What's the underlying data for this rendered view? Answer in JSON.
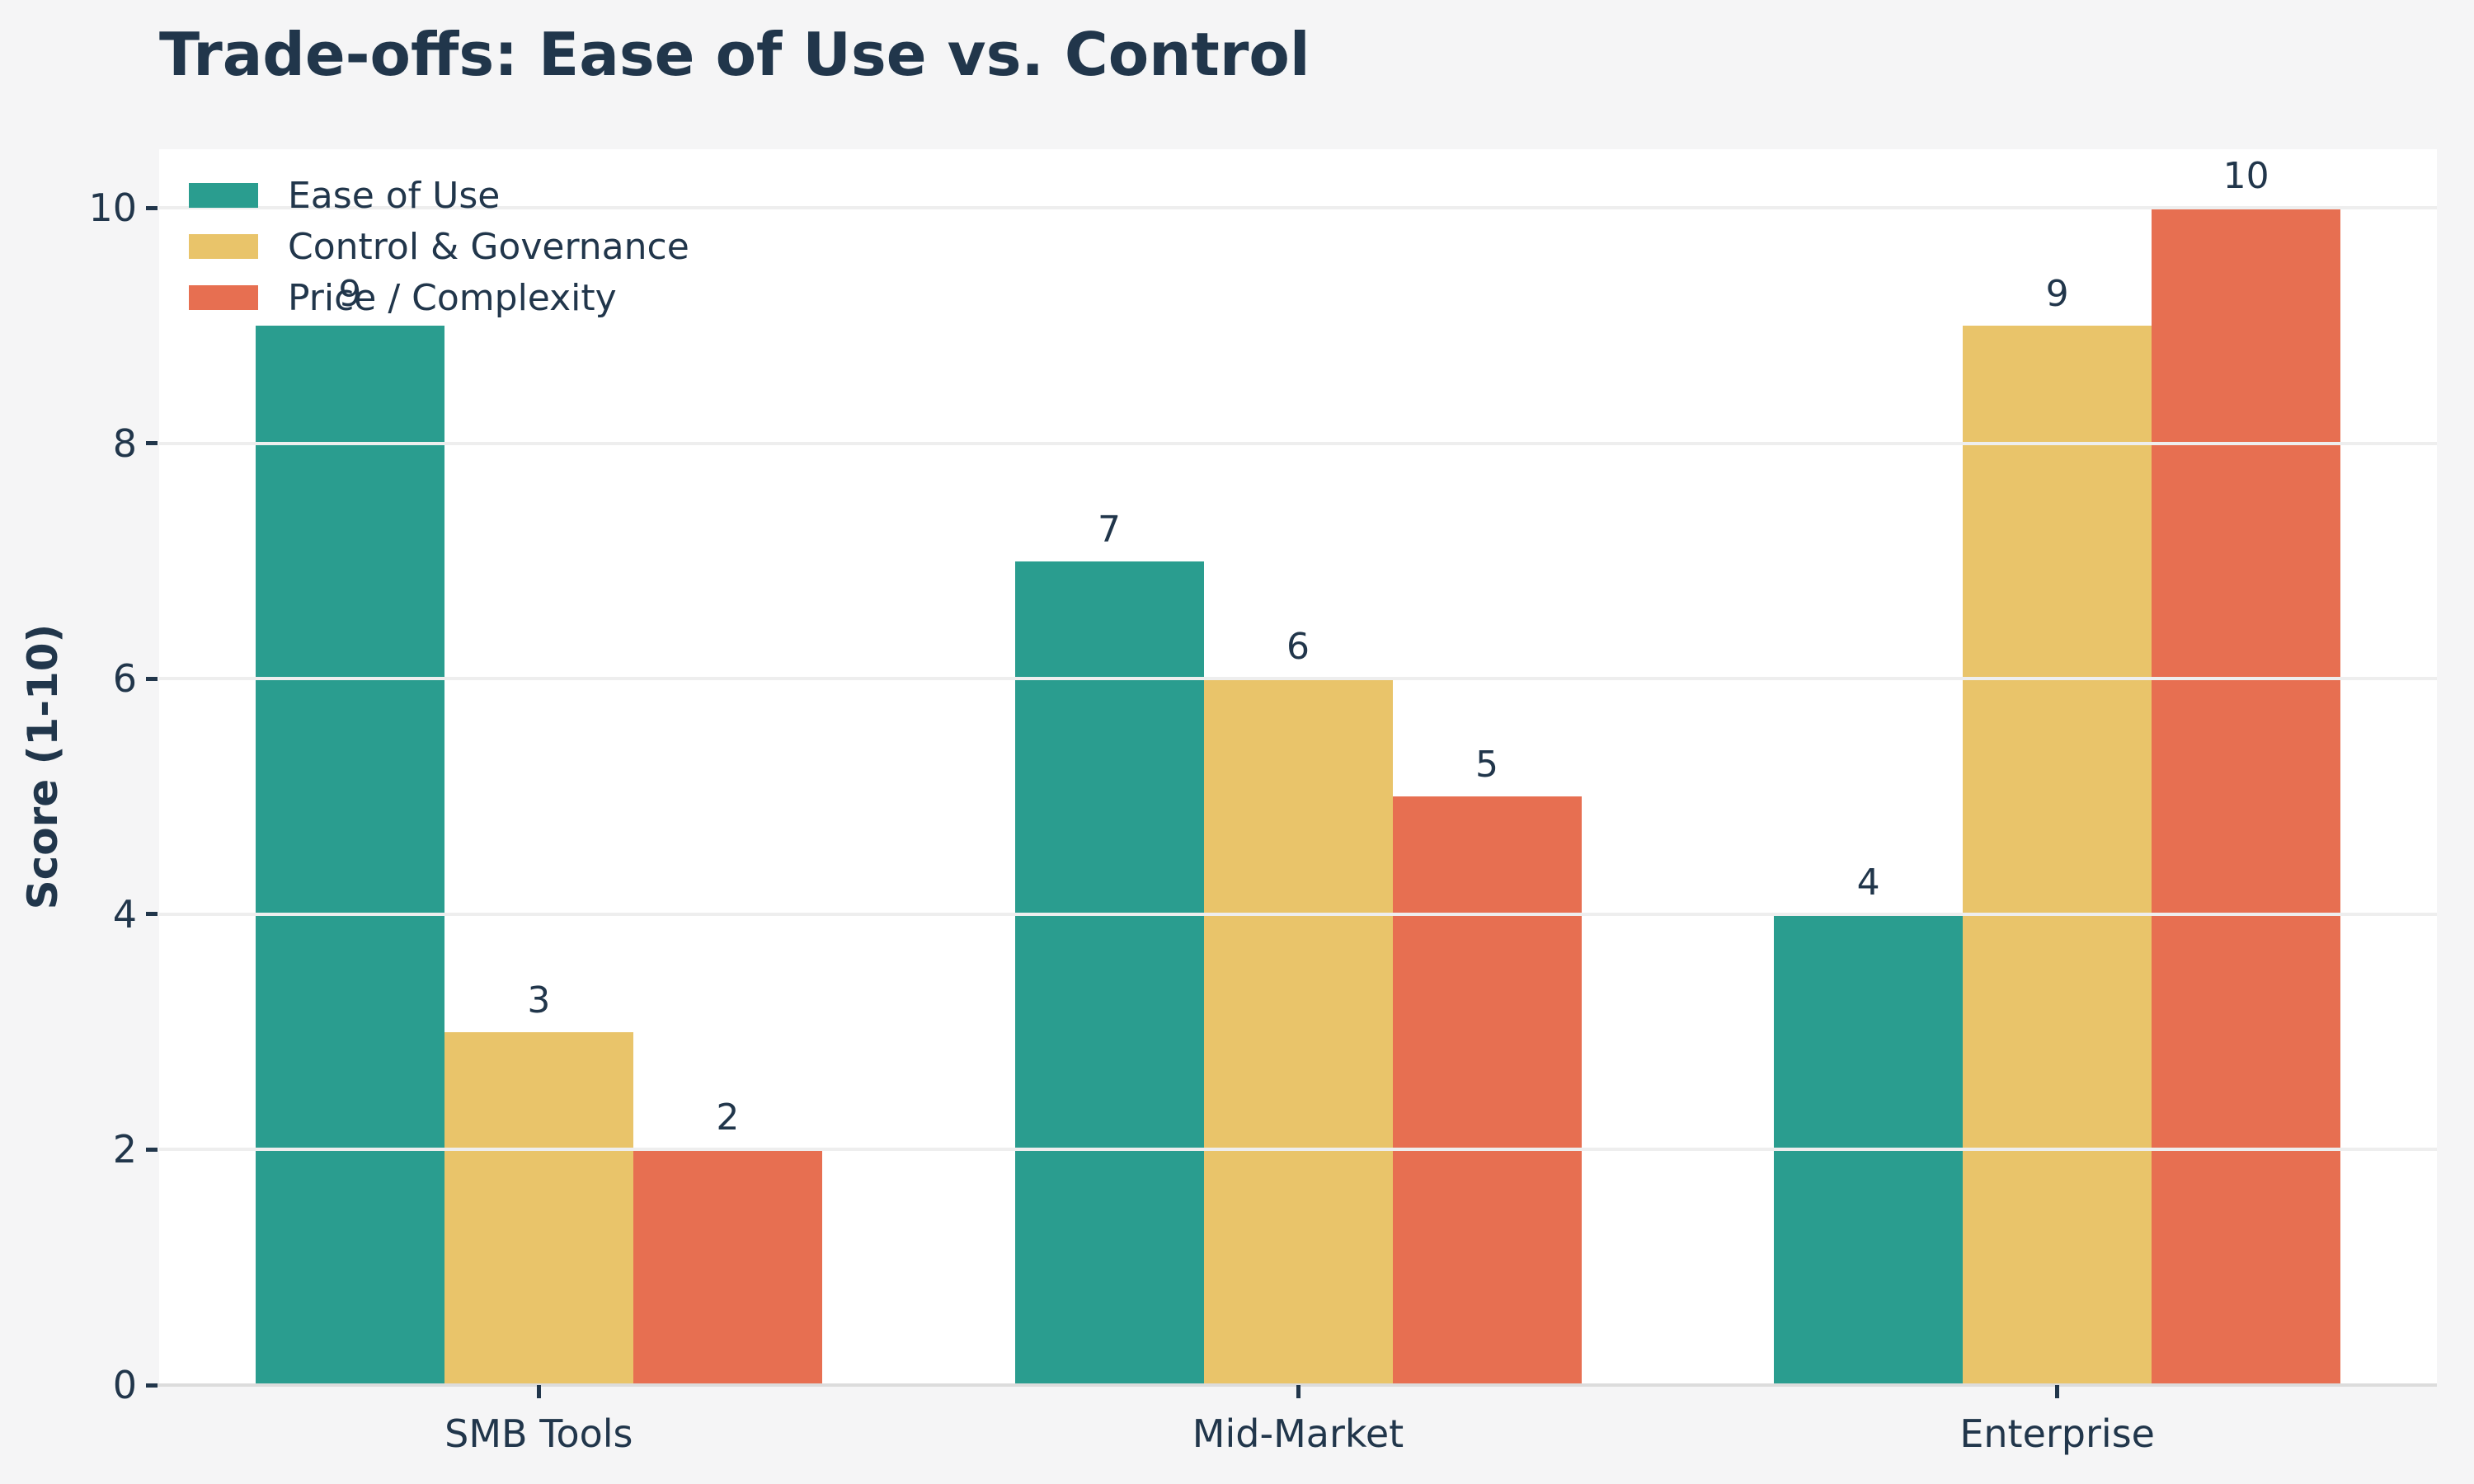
{
  "page": {
    "background": "#f5f5f6",
    "text_color": "#21364b"
  },
  "chart_data": {
    "type": "bar",
    "title": "Trade-offs: Ease of Use vs. Control",
    "xlabel": "",
    "ylabel": "Score (1-10)",
    "categories": [
      "SMB Tools",
      "Mid-Market",
      "Enterprise"
    ],
    "series": [
      {
        "name": "Ease of Use",
        "color": "#2a9d8f",
        "values": [
          9,
          7,
          4
        ]
      },
      {
        "name": "Control & Governance",
        "color": "#e9c46a",
        "values": [
          3,
          6,
          9
        ]
      },
      {
        "name": "Price / Complexity",
        "color": "#e76f51",
        "values": [
          2,
          5,
          10
        ]
      }
    ],
    "ylim": [
      0,
      10.5
    ],
    "yticks": [
      0,
      2,
      4,
      6,
      8,
      10
    ],
    "grid": true,
    "grid_on_top_of_bars": true,
    "legend_position": "upper-left",
    "value_labels_shown": true,
    "plot_background": "#ffffff",
    "grid_color": "#eeeeee"
  }
}
